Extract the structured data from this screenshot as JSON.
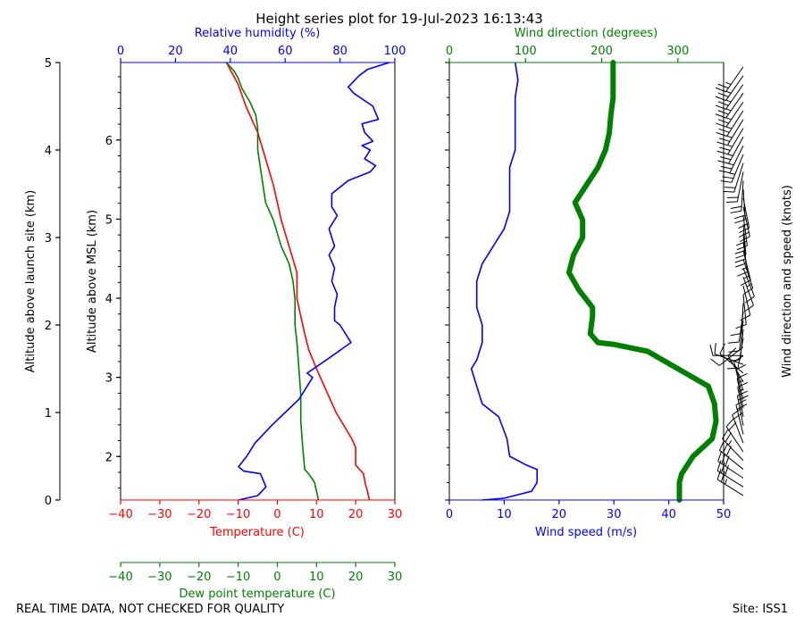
{
  "title": "Height series plot for 19-Jul-2023 16:13:43",
  "footer": {
    "left": "REAL TIME DATA, NOT CHECKED FOR QUALITY",
    "right": "Site: ISS1"
  },
  "colors": {
    "temperature": "#ff0000",
    "dewpoint": "#008000",
    "rh": "#0000ff",
    "wind_speed": "#0000ff",
    "wind_dir": "#008000",
    "axis": "#000000"
  },
  "chart_data": [
    {
      "type": "line",
      "panel": "thermo",
      "xlabel_temp": "Temperature (C)",
      "xlabel_dew": "Dew point temperature (C)",
      "xlabel_rh": "Relative humidity (%)",
      "ylabel_launch": "Altitude above launch site (km)",
      "ylabel_msl": "Altitude above MSL (km)",
      "xlim_temp": [
        -40,
        30
      ],
      "xlim_rh": [
        0,
        100
      ],
      "ylim_launch": [
        0,
        5
      ],
      "ylim_msl": [
        1.45,
        6.98
      ],
      "temp_ticks": [
        -40,
        -30,
        -20,
        -10,
        0,
        10,
        20,
        30
      ],
      "temp_tick_labels": [
        "−40",
        "−30",
        "−20",
        "−10",
        "0",
        "10",
        "20",
        "30"
      ],
      "rh_ticks": [
        0,
        20,
        40,
        60,
        80,
        100
      ],
      "rh_tick_labels": [
        "0",
        "20",
        "40",
        "60",
        "80",
        "100"
      ],
      "launch_ticks": [
        0,
        1,
        2,
        3,
        4,
        5
      ],
      "launch_tick_labels": [
        "0",
        "1",
        "2",
        "3",
        "4",
        "5"
      ],
      "msl_ticks": [
        2,
        3,
        4,
        5,
        6
      ],
      "msl_tick_labels": [
        "2",
        "3",
        "4",
        "5",
        "6"
      ],
      "series": [
        {
          "name": "Temperature",
          "x_axis": "temp",
          "points": [
            [
              23.5,
              0
            ],
            [
              23,
              0.1
            ],
            [
              22.5,
              0.18
            ],
            [
              22,
              0.3
            ],
            [
              20,
              0.4
            ],
            [
              20,
              0.6
            ],
            [
              19,
              0.7
            ],
            [
              17,
              0.85
            ],
            [
              15,
              1.0
            ],
            [
              13,
              1.2
            ],
            [
              11,
              1.4
            ],
            [
              10,
              1.5
            ],
            [
              8,
              1.72
            ],
            [
              7,
              1.9
            ],
            [
              6,
              2.1
            ],
            [
              5,
              2.3
            ],
            [
              5,
              2.6
            ],
            [
              3,
              2.9
            ],
            [
              1,
              3.2
            ],
            [
              -1,
              3.6
            ],
            [
              -3,
              3.9
            ],
            [
              -5,
              4.2
            ],
            [
              -8,
              4.5
            ],
            [
              -10,
              4.75
            ],
            [
              -13,
              5.0
            ]
          ]
        },
        {
          "name": "Dew point",
          "x_axis": "temp",
          "points": [
            [
              10.5,
              0
            ],
            [
              10,
              0.1
            ],
            [
              9.5,
              0.2
            ],
            [
              8,
              0.3
            ],
            [
              7,
              0.35
            ],
            [
              6.5,
              0.6
            ],
            [
              6,
              0.9
            ],
            [
              6,
              1.2
            ],
            [
              5.5,
              1.5
            ],
            [
              5,
              1.8
            ],
            [
              4.5,
              2.0
            ],
            [
              4.5,
              2.3
            ],
            [
              4,
              2.5
            ],
            [
              3,
              2.7
            ],
            [
              1,
              2.9
            ],
            [
              -1,
              3.2
            ],
            [
              -3,
              3.4
            ],
            [
              -4,
              3.7
            ],
            [
              -5,
              4.0
            ],
            [
              -5,
              4.25
            ],
            [
              -5.5,
              4.4
            ],
            [
              -7,
              4.55
            ],
            [
              -9,
              4.7
            ],
            [
              -10,
              4.82
            ],
            [
              -11,
              4.9
            ],
            [
              -12,
              4.95
            ],
            [
              -13,
              5.0
            ]
          ]
        },
        {
          "name": "Relative humidity",
          "x_axis": "rh",
          "points": [
            [
              43,
              0
            ],
            [
              50,
              0.05
            ],
            [
              53,
              0.15
            ],
            [
              51,
              0.3
            ],
            [
              45,
              0.33
            ],
            [
              43,
              0.38
            ],
            [
              46,
              0.5
            ],
            [
              49,
              0.65
            ],
            [
              55,
              0.85
            ],
            [
              60,
              1.0
            ],
            [
              65,
              1.15
            ],
            [
              68,
              1.3
            ],
            [
              70,
              1.4
            ],
            [
              68,
              1.45
            ],
            [
              75,
              1.6
            ],
            [
              84,
              1.8
            ],
            [
              80,
              2.0
            ],
            [
              78,
              2.05
            ],
            [
              78,
              2.2
            ],
            [
              79,
              2.35
            ],
            [
              77,
              2.5
            ],
            [
              78,
              2.65
            ],
            [
              76,
              2.8
            ],
            [
              78,
              2.9
            ],
            [
              76,
              3.1
            ],
            [
              79,
              3.25
            ],
            [
              77,
              3.35
            ],
            [
              77,
              3.5
            ],
            [
              83,
              3.65
            ],
            [
              91,
              3.75
            ],
            [
              93,
              3.82
            ],
            [
              89,
              3.9
            ],
            [
              91,
              4.0
            ],
            [
              88,
              4.05
            ],
            [
              92,
              4.1
            ],
            [
              89,
              4.2
            ],
            [
              88,
              4.3
            ],
            [
              94,
              4.35
            ],
            [
              92,
              4.5
            ],
            [
              85,
              4.65
            ],
            [
              83,
              4.72
            ],
            [
              87,
              4.85
            ],
            [
              90,
              4.92
            ],
            [
              95,
              4.97
            ],
            [
              98,
              5.0
            ]
          ]
        }
      ]
    },
    {
      "type": "line",
      "panel": "wind",
      "xlabel_speed": "Wind speed (m/s)",
      "xlabel_dir": "Wind direction (degrees)",
      "barb_label": "Wind direction and speed (knots)",
      "xlim_speed": [
        0,
        50
      ],
      "xlim_dir": [
        0,
        360
      ],
      "speed_ticks": [
        0,
        10,
        20,
        30,
        40,
        50
      ],
      "speed_tick_labels": [
        "0",
        "10",
        "20",
        "30",
        "40",
        "50"
      ],
      "dir_ticks": [
        0,
        100,
        200,
        300
      ],
      "dir_tick_labels": [
        "0",
        "100",
        "200",
        "300"
      ],
      "series": [
        {
          "name": "Wind speed",
          "x_axis": "speed",
          "points": [
            [
              6,
              0
            ],
            [
              10,
              0.02
            ],
            [
              15,
              0.1
            ],
            [
              16,
              0.2
            ],
            [
              16,
              0.35
            ],
            [
              14,
              0.4
            ],
            [
              11,
              0.5
            ],
            [
              10.5,
              0.7
            ],
            [
              9,
              0.95
            ],
            [
              6,
              1.1
            ],
            [
              5,
              1.3
            ],
            [
              4,
              1.5
            ],
            [
              5,
              1.6
            ],
            [
              6,
              1.8
            ],
            [
              6,
              2.0
            ],
            [
              5,
              2.2
            ],
            [
              5,
              2.5
            ],
            [
              6,
              2.7
            ],
            [
              8,
              2.9
            ],
            [
              10,
              3.1
            ],
            [
              11,
              3.3
            ],
            [
              11,
              3.6
            ],
            [
              11,
              3.8
            ],
            [
              12,
              4.0
            ],
            [
              12,
              4.2
            ],
            [
              12,
              4.4
            ],
            [
              12,
              4.6
            ],
            [
              12.5,
              4.8
            ],
            [
              12,
              5.0
            ]
          ]
        },
        {
          "name": "Wind direction",
          "x_axis": "dir",
          "points": [
            [
              302,
              0
            ],
            [
              302,
              0.2
            ],
            [
              305,
              0.3
            ],
            [
              320,
              0.5
            ],
            [
              345,
              0.7
            ],
            [
              350,
              0.9
            ],
            [
              348,
              1.1
            ],
            [
              340,
              1.3
            ],
            [
              300,
              1.5
            ],
            [
              260,
              1.7
            ],
            [
              215,
              1.78
            ],
            [
              195,
              1.8
            ],
            [
              185,
              1.9
            ],
            [
              188,
              2.1
            ],
            [
              188,
              2.2
            ],
            [
              170,
              2.4
            ],
            [
              157,
              2.6
            ],
            [
              163,
              2.8
            ],
            [
              175,
              3.0
            ],
            [
              175,
              3.2
            ],
            [
              165,
              3.4
            ],
            [
              180,
              3.6
            ],
            [
              195,
              3.8
            ],
            [
              205,
              4.0
            ],
            [
              210,
              4.2
            ],
            [
              212,
              4.4
            ],
            [
              215,
              4.6
            ],
            [
              215,
              4.8
            ],
            [
              215,
              5.0
            ]
          ]
        }
      ]
    }
  ]
}
